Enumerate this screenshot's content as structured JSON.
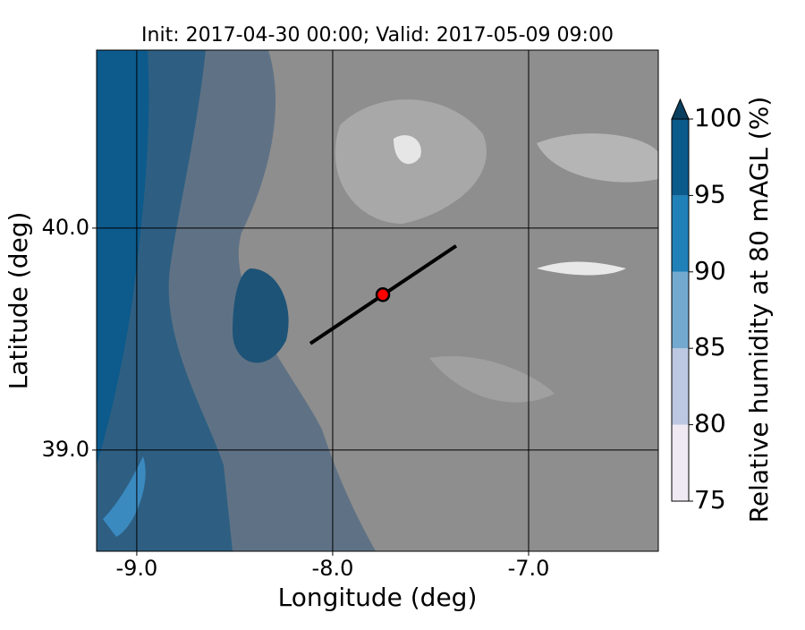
{
  "title": "Init: 2017-04-30 00:00; Valid: 2017-05-09 09:00",
  "x_axis": {
    "label": "Longitude (deg)",
    "lim": [
      -9.205,
      -6.338
    ],
    "ticks": [
      {
        "value": -9,
        "label": "-9.0"
      },
      {
        "value": -8,
        "label": "-8.0"
      },
      {
        "value": -7,
        "label": "-7.0"
      }
    ]
  },
  "y_axis": {
    "label": "Latitude (deg)",
    "lim": [
      38.544,
      40.802
    ],
    "ticks": [
      {
        "value": 39,
        "label": "39.0"
      },
      {
        "value": 40,
        "label": "40.0"
      }
    ]
  },
  "colorbar": {
    "label": "Relative humidity at 80 mAGL (%)",
    "levels": [
      75,
      80,
      85,
      90,
      95,
      100
    ],
    "colors": [
      "#efe9f3",
      "#bcc8e1",
      "#74a9cf",
      "#2081b9",
      "#0b5a8c"
    ],
    "extend_color": "#0a3f60"
  },
  "cross_section": {
    "start": [
      -8.114,
      39.48
    ],
    "end": [
      -7.37,
      39.92
    ]
  },
  "point": {
    "lon": -7.744,
    "lat": 39.7,
    "color": "#ff0000"
  }
}
